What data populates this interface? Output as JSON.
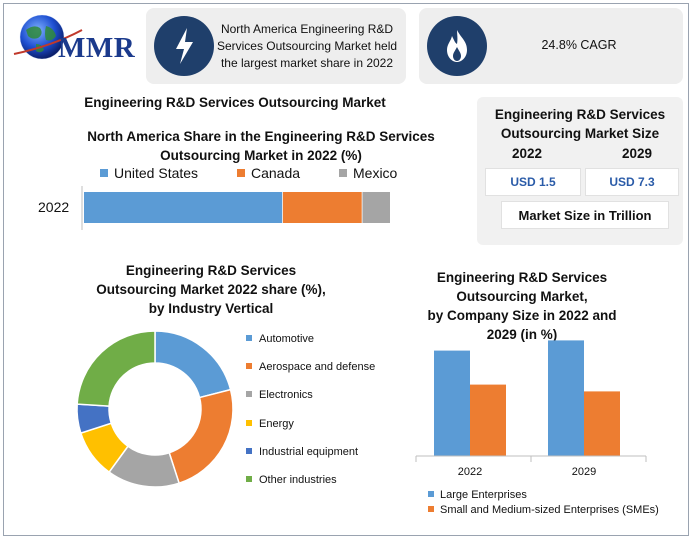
{
  "logo": {
    "text": "MMR"
  },
  "cards": [
    {
      "icon": "lightning-bolt-icon",
      "text_lines": [
        "North America Engineering R&D",
        "Services Outsourcing Market held",
        "the largest market share in 2022"
      ]
    },
    {
      "icon": "flame-icon",
      "text_lines": [
        "24.8% CAGR"
      ]
    }
  ],
  "main_title": "Engineering R&D Services Outsourcing Market",
  "market_size": {
    "title_lines": [
      "Engineering R&D Services",
      "Outsourcing Market Size"
    ],
    "years": [
      "2022",
      "2029"
    ],
    "values": [
      "USD 1.5",
      "USD 7.3"
    ],
    "unit": "Market Size in Trillion"
  },
  "chart_data": [
    {
      "type": "bar",
      "orientation": "horizontal-stacked",
      "title_lines": [
        "North America Share in the Engineering R&D Services",
        "Outsourcing Market in 2022 (%)"
      ],
      "categories": [
        "2022"
      ],
      "series": [
        {
          "name": "United States",
          "values": [
            65
          ],
          "color": "#5b9bd5"
        },
        {
          "name": "Canada",
          "values": [
            26
          ],
          "color": "#ed7d31"
        },
        {
          "name": "Mexico",
          "values": [
            9
          ],
          "color": "#a5a5a5"
        }
      ],
      "legend_position": "top"
    },
    {
      "type": "pie",
      "style": "donut",
      "title_lines": [
        "Engineering R&D Services",
        "Outsourcing Market 2022 share (%),",
        "by Industry Vertical"
      ],
      "categories": [
        "Automotive",
        "Aerospace and defense",
        "Electronics",
        "Energy",
        "Industrial equipment",
        "Other industries"
      ],
      "values": [
        21,
        24,
        15,
        10,
        6,
        24
      ],
      "colors": [
        "#5b9bd5",
        "#ed7d31",
        "#a5a5a5",
        "#ffc000",
        "#4472c4",
        "#70ad47"
      ],
      "legend_position": "right"
    },
    {
      "type": "bar",
      "orientation": "vertical-grouped",
      "title_lines": [
        "Engineering R&D Services",
        "Outsourcing Market,",
        "by Company Size in 2022 and",
        "2029 (in %)"
      ],
      "categories": [
        "2022",
        "2029"
      ],
      "series": [
        {
          "name": "Large Enterprises",
          "values": [
            62,
            68
          ],
          "color": "#5b9bd5"
        },
        {
          "name": "Small and Medium-sized Enterprises (SMEs)",
          "values": [
            42,
            38
          ],
          "color": "#ed7d31"
        }
      ],
      "ylim": [
        0,
        100
      ],
      "legend_position": "bottom"
    }
  ]
}
